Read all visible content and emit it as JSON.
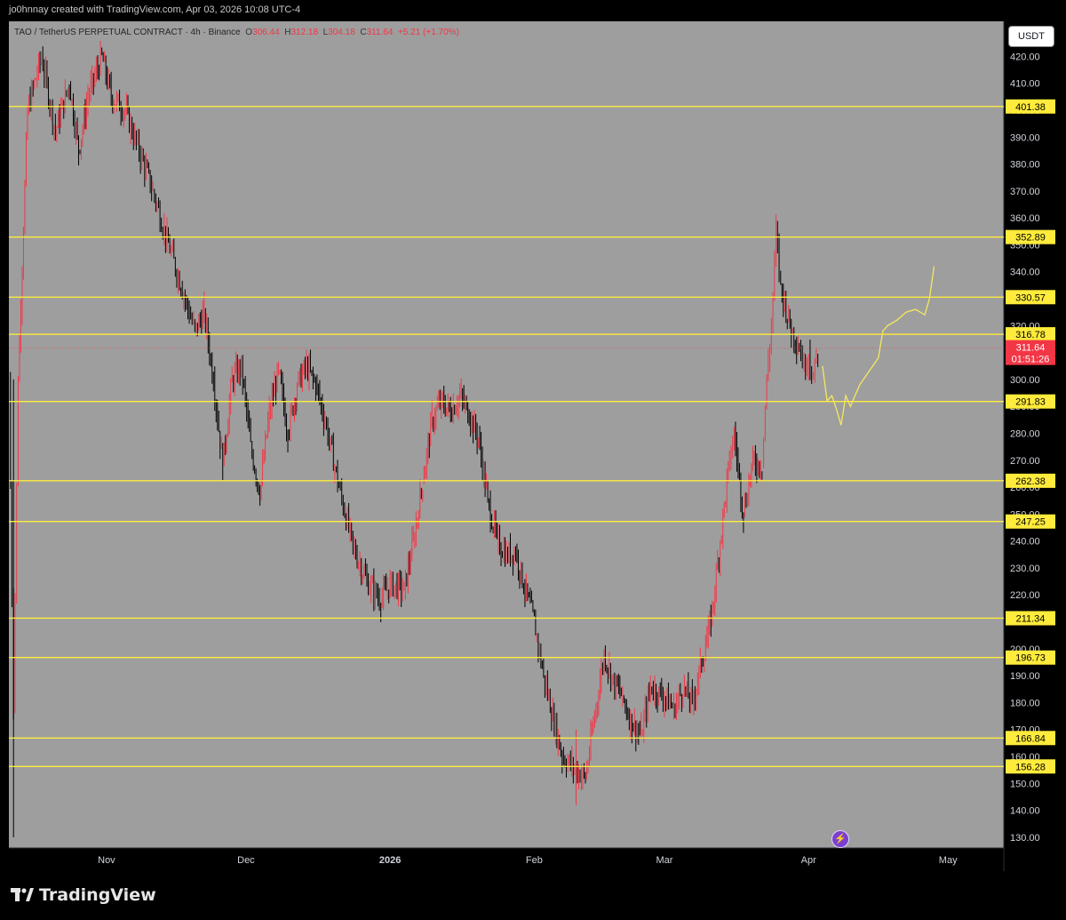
{
  "credit": "jo0hnnay created with TradingView.com, Apr 03, 2026 10:08 UTC-4",
  "header": {
    "symbol": "TAO / TetherUS PERPETUAL CONTRACT · 4h · Binance",
    "o_label": "O",
    "o_value": "306.44",
    "h_label": "H",
    "h_value": "312.18",
    "l_label": "L",
    "l_value": "304.18",
    "c_label": "C",
    "c_value": "311.64",
    "change": "+5.21 (+1.70%)"
  },
  "currency_button": "USDT",
  "brand": "TradingView",
  "colors": {
    "background": "#9e9e9e",
    "level_line": "#ffeb3b",
    "up_candle": "#f23645",
    "down_candle": "#000000",
    "projection": "#f5e85c",
    "price_tag": "#f23645"
  },
  "chart_data": {
    "type": "candlestick",
    "timeframe": "4h",
    "y_ticks": [
      420,
      410,
      400,
      390,
      380,
      370,
      360,
      350,
      340,
      330,
      320,
      310,
      300,
      290,
      280,
      270,
      260,
      250,
      240,
      230,
      220,
      210,
      200,
      190,
      180,
      170,
      160,
      150,
      140,
      130
    ],
    "y_tick_labels": [
      "420.00",
      "410.00",
      "400.00",
      "390.00",
      "380.00",
      "370.00",
      "360.00",
      "350.00",
      "340.00",
      "330.00",
      "320.00",
      "310.00",
      "300.00",
      "290.00",
      "280.00",
      "270.00",
      "260.00",
      "250.00",
      "240.00",
      "230.00",
      "220.00",
      "210.00",
      "200.00",
      "190.00",
      "180.00",
      "170.00",
      "160.00",
      "150.00",
      "140.00",
      "130.00"
    ],
    "ylim": [
      126,
      433
    ],
    "x_labels": [
      "Nov",
      "Dec",
      "2026",
      "Feb",
      "Mar",
      "Apr",
      "May"
    ],
    "x_label_dates": [
      "2025-11-01",
      "2025-12-01",
      "2026-01-01",
      "2026-02-01",
      "2026-03-01",
      "2026-04-01",
      "2026-05-01"
    ],
    "xlim_dates": [
      "2025-10-11",
      "2026-05-13"
    ],
    "levels": [
      401.38,
      352.89,
      330.57,
      316.78,
      291.83,
      262.38,
      247.25,
      211.34,
      196.73,
      166.84,
      156.28
    ],
    "level_labels": [
      "401.38",
      "352.89",
      "330.57",
      "316.78",
      "291.83",
      "262.38",
      "247.25",
      "211.34",
      "196.73",
      "166.84",
      "156.28"
    ],
    "last_price": "311.64",
    "countdown": "01:51:26",
    "price_path": [
      [
        "2025-10-11",
        300
      ],
      [
        "2025-10-12",
        180
      ],
      [
        "2025-10-13",
        300
      ],
      [
        "2025-10-15",
        400
      ],
      [
        "2025-10-18",
        420
      ],
      [
        "2025-10-21",
        392
      ],
      [
        "2025-10-24",
        410
      ],
      [
        "2025-10-26",
        385
      ],
      [
        "2025-10-28",
        405
      ],
      [
        "2025-10-31",
        420
      ],
      [
        "2025-11-02",
        405
      ],
      [
        "2025-11-05",
        400
      ],
      [
        "2025-11-08",
        385
      ],
      [
        "2025-11-11",
        370
      ],
      [
        "2025-11-14",
        352
      ],
      [
        "2025-11-17",
        335
      ],
      [
        "2025-11-20",
        318
      ],
      [
        "2025-11-22",
        325
      ],
      [
        "2025-11-24",
        300
      ],
      [
        "2025-11-26",
        268
      ],
      [
        "2025-11-28",
        300
      ],
      [
        "2025-11-30",
        305
      ],
      [
        "2025-12-02",
        275
      ],
      [
        "2025-12-04",
        258
      ],
      [
        "2025-12-06",
        288
      ],
      [
        "2025-12-08",
        303
      ],
      [
        "2025-12-10",
        280
      ],
      [
        "2025-12-12",
        298
      ],
      [
        "2025-12-14",
        305
      ],
      [
        "2025-12-16",
        298
      ],
      [
        "2025-12-18",
        285
      ],
      [
        "2025-12-21",
        260
      ],
      [
        "2025-12-24",
        238
      ],
      [
        "2025-12-27",
        225
      ],
      [
        "2025-12-30",
        218
      ],
      [
        "2026-01-01",
        224
      ],
      [
        "2026-01-04",
        222
      ],
      [
        "2026-01-06",
        240
      ],
      [
        "2026-01-08",
        262
      ],
      [
        "2026-01-10",
        285
      ],
      [
        "2026-01-12",
        292
      ],
      [
        "2026-01-14",
        288
      ],
      [
        "2026-01-16",
        294
      ],
      [
        "2026-01-18",
        287
      ],
      [
        "2026-01-20",
        278
      ],
      [
        "2026-01-22",
        255
      ],
      [
        "2026-01-24",
        240
      ],
      [
        "2026-01-26",
        235
      ],
      [
        "2026-01-28",
        236
      ],
      [
        "2026-01-30",
        222
      ],
      [
        "2026-02-01",
        210
      ],
      [
        "2026-02-03",
        190
      ],
      [
        "2026-02-05",
        175
      ],
      [
        "2026-02-07",
        160
      ],
      [
        "2026-02-10",
        155
      ],
      [
        "2026-02-12",
        152
      ],
      [
        "2026-02-14",
        175
      ],
      [
        "2026-02-16",
        198
      ],
      [
        "2026-02-18",
        188
      ],
      [
        "2026-02-20",
        182
      ],
      [
        "2026-02-22",
        172
      ],
      [
        "2026-02-24",
        168
      ],
      [
        "2026-02-26",
        186
      ],
      [
        "2026-03-01",
        182
      ],
      [
        "2026-03-03",
        178
      ],
      [
        "2026-03-05",
        185
      ],
      [
        "2026-03-07",
        180
      ],
      [
        "2026-03-09",
        195
      ],
      [
        "2026-03-11",
        210
      ],
      [
        "2026-03-13",
        240
      ],
      [
        "2026-03-15",
        270
      ],
      [
        "2026-03-16",
        280
      ],
      [
        "2026-03-18",
        250
      ],
      [
        "2026-03-20",
        270
      ],
      [
        "2026-03-22",
        268
      ],
      [
        "2026-03-23",
        300
      ],
      [
        "2026-03-24",
        320
      ],
      [
        "2026-03-25",
        355
      ],
      [
        "2026-03-26",
        335
      ],
      [
        "2026-03-28",
        320
      ],
      [
        "2026-03-30",
        312
      ],
      [
        "2026-03-31",
        305
      ],
      [
        "2026-04-01",
        310
      ],
      [
        "2026-04-02",
        300
      ],
      [
        "2026-04-03",
        311.64
      ]
    ],
    "projection": [
      [
        "2026-04-04",
        305
      ],
      [
        "2026-04-05",
        292
      ],
      [
        "2026-04-06",
        294
      ],
      [
        "2026-04-07",
        289
      ],
      [
        "2026-04-08",
        283
      ],
      [
        "2026-04-09",
        294
      ],
      [
        "2026-04-10",
        290
      ],
      [
        "2026-04-11",
        294
      ],
      [
        "2026-04-12",
        298
      ],
      [
        "2026-04-14",
        303
      ],
      [
        "2026-04-16",
        308
      ],
      [
        "2026-04-17",
        318
      ],
      [
        "2026-04-18",
        320
      ],
      [
        "2026-04-20",
        322
      ],
      [
        "2026-04-22",
        325
      ],
      [
        "2026-04-24",
        326
      ],
      [
        "2026-04-26",
        324
      ],
      [
        "2026-04-27",
        330
      ],
      [
        "2026-04-28",
        342
      ]
    ]
  }
}
